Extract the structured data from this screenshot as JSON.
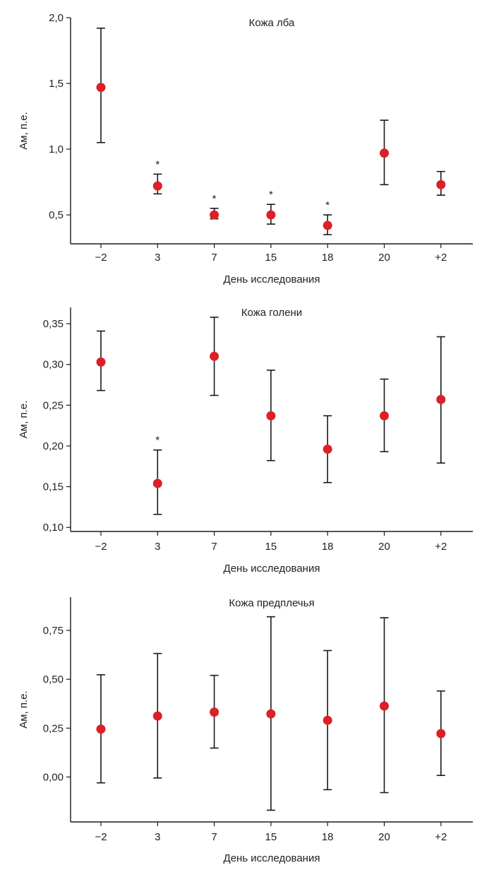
{
  "colors": {
    "point": "#dd1f26",
    "axis": "#1a1a1a",
    "errorbar": "#1a1a1a"
  },
  "chart_data": [
    {
      "type": "scatter",
      "title": "Кожа лба",
      "xlabel": "День исследования",
      "ylabel": "Ам, п.е.",
      "categories": [
        "−2",
        "3",
        "7",
        "15",
        "18",
        "20",
        "+2"
      ],
      "ylim": [
        0.28,
        2.0
      ],
      "yticks": [
        0.5,
        1.0,
        1.5,
        2.0
      ],
      "ytick_labels": [
        "0,5",
        "1,0",
        "1,5",
        "2,0"
      ],
      "series": [
        {
          "values": [
            1.47,
            0.72,
            0.5,
            0.5,
            0.42,
            0.97,
            0.73
          ],
          "err_low": [
            1.05,
            0.66,
            0.47,
            0.43,
            0.35,
            0.73,
            0.65
          ],
          "err_high": [
            1.92,
            0.81,
            0.55,
            0.58,
            0.5,
            1.22,
            0.83
          ]
        }
      ],
      "annotations": [
        {
          "category": "3",
          "text": "*"
        },
        {
          "category": "7",
          "text": "*"
        },
        {
          "category": "15",
          "text": "*"
        },
        {
          "category": "18",
          "text": "*"
        }
      ]
    },
    {
      "type": "scatter",
      "title": "Кожа голени",
      "xlabel": "День исследования",
      "ylabel": "Ам, п.е.",
      "categories": [
        "−2",
        "3",
        "7",
        "15",
        "18",
        "20",
        "+2"
      ],
      "ylim": [
        0.095,
        0.37
      ],
      "yticks": [
        0.1,
        0.15,
        0.2,
        0.25,
        0.3,
        0.35
      ],
      "ytick_labels": [
        "0,10",
        "0,15",
        "0,20",
        "0,25",
        "0,30",
        "0,35"
      ],
      "series": [
        {
          "values": [
            0.303,
            0.154,
            0.31,
            0.237,
            0.196,
            0.237,
            0.257
          ],
          "err_low": [
            0.268,
            0.116,
            0.262,
            0.182,
            0.155,
            0.193,
            0.179
          ],
          "err_high": [
            0.341,
            0.195,
            0.358,
            0.293,
            0.237,
            0.282,
            0.334
          ]
        }
      ],
      "annotations": [
        {
          "category": "3",
          "text": "*"
        }
      ]
    },
    {
      "type": "scatter",
      "title": "Кожа предплечья",
      "xlabel": "День исследования",
      "ylabel": "Ам, п.е.",
      "categories": [
        "−2",
        "3",
        "7",
        "15",
        "18",
        "20",
        "+2"
      ],
      "ylim": [
        -0.23,
        0.92
      ],
      "yticks": [
        0.0,
        0.25,
        0.5,
        0.75
      ],
      "ytick_labels": [
        "0,00",
        "0,25",
        "0,50",
        "0,75"
      ],
      "series": [
        {
          "values": [
            0.245,
            0.312,
            0.332,
            0.323,
            0.29,
            0.363,
            0.222
          ],
          "err_low": [
            -0.03,
            -0.005,
            0.148,
            -0.17,
            -0.065,
            -0.08,
            0.008
          ],
          "err_high": [
            0.523,
            0.632,
            0.52,
            0.82,
            0.647,
            0.815,
            0.44
          ]
        }
      ],
      "annotations": []
    }
  ]
}
